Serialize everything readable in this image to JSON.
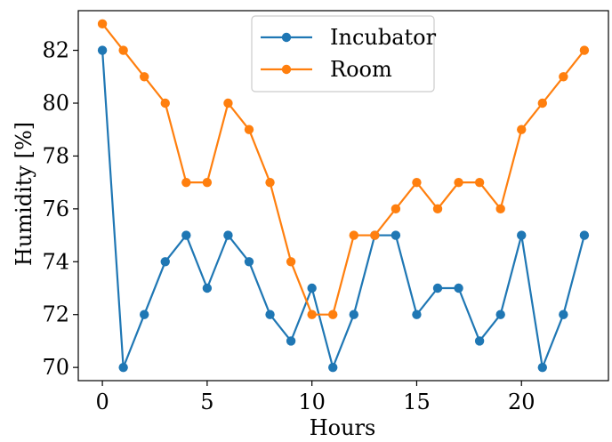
{
  "chart_data": {
    "type": "line",
    "title": "",
    "xlabel": "Hours",
    "ylabel": "Humidity [%]",
    "xlim": [
      -1.15,
      24.15
    ],
    "ylim": [
      69.5,
      83.5
    ],
    "xticks": [
      0,
      5,
      10,
      15,
      20
    ],
    "yticks": [
      70,
      72,
      74,
      76,
      78,
      80,
      82
    ],
    "grid": false,
    "legend_position": "top-center",
    "x": [
      0,
      1,
      2,
      3,
      4,
      5,
      6,
      7,
      8,
      9,
      10,
      11,
      12,
      13,
      14,
      15,
      16,
      17,
      18,
      19,
      20,
      21,
      22,
      23
    ],
    "series": [
      {
        "name": "Incubator",
        "color": "#1f77b4",
        "values": [
          82,
          70,
          72,
          74,
          75,
          73,
          75,
          74,
          72,
          71,
          73,
          70,
          72,
          75,
          75,
          72,
          73,
          73,
          71,
          72,
          75,
          70,
          72,
          75
        ]
      },
      {
        "name": "Room",
        "color": "#ff7f0e",
        "values": [
          83,
          82,
          81,
          80,
          77,
          77,
          80,
          79,
          77,
          74,
          72,
          72,
          75,
          75,
          76,
          77,
          76,
          77,
          77,
          76,
          79,
          80,
          81,
          82
        ]
      }
    ]
  }
}
